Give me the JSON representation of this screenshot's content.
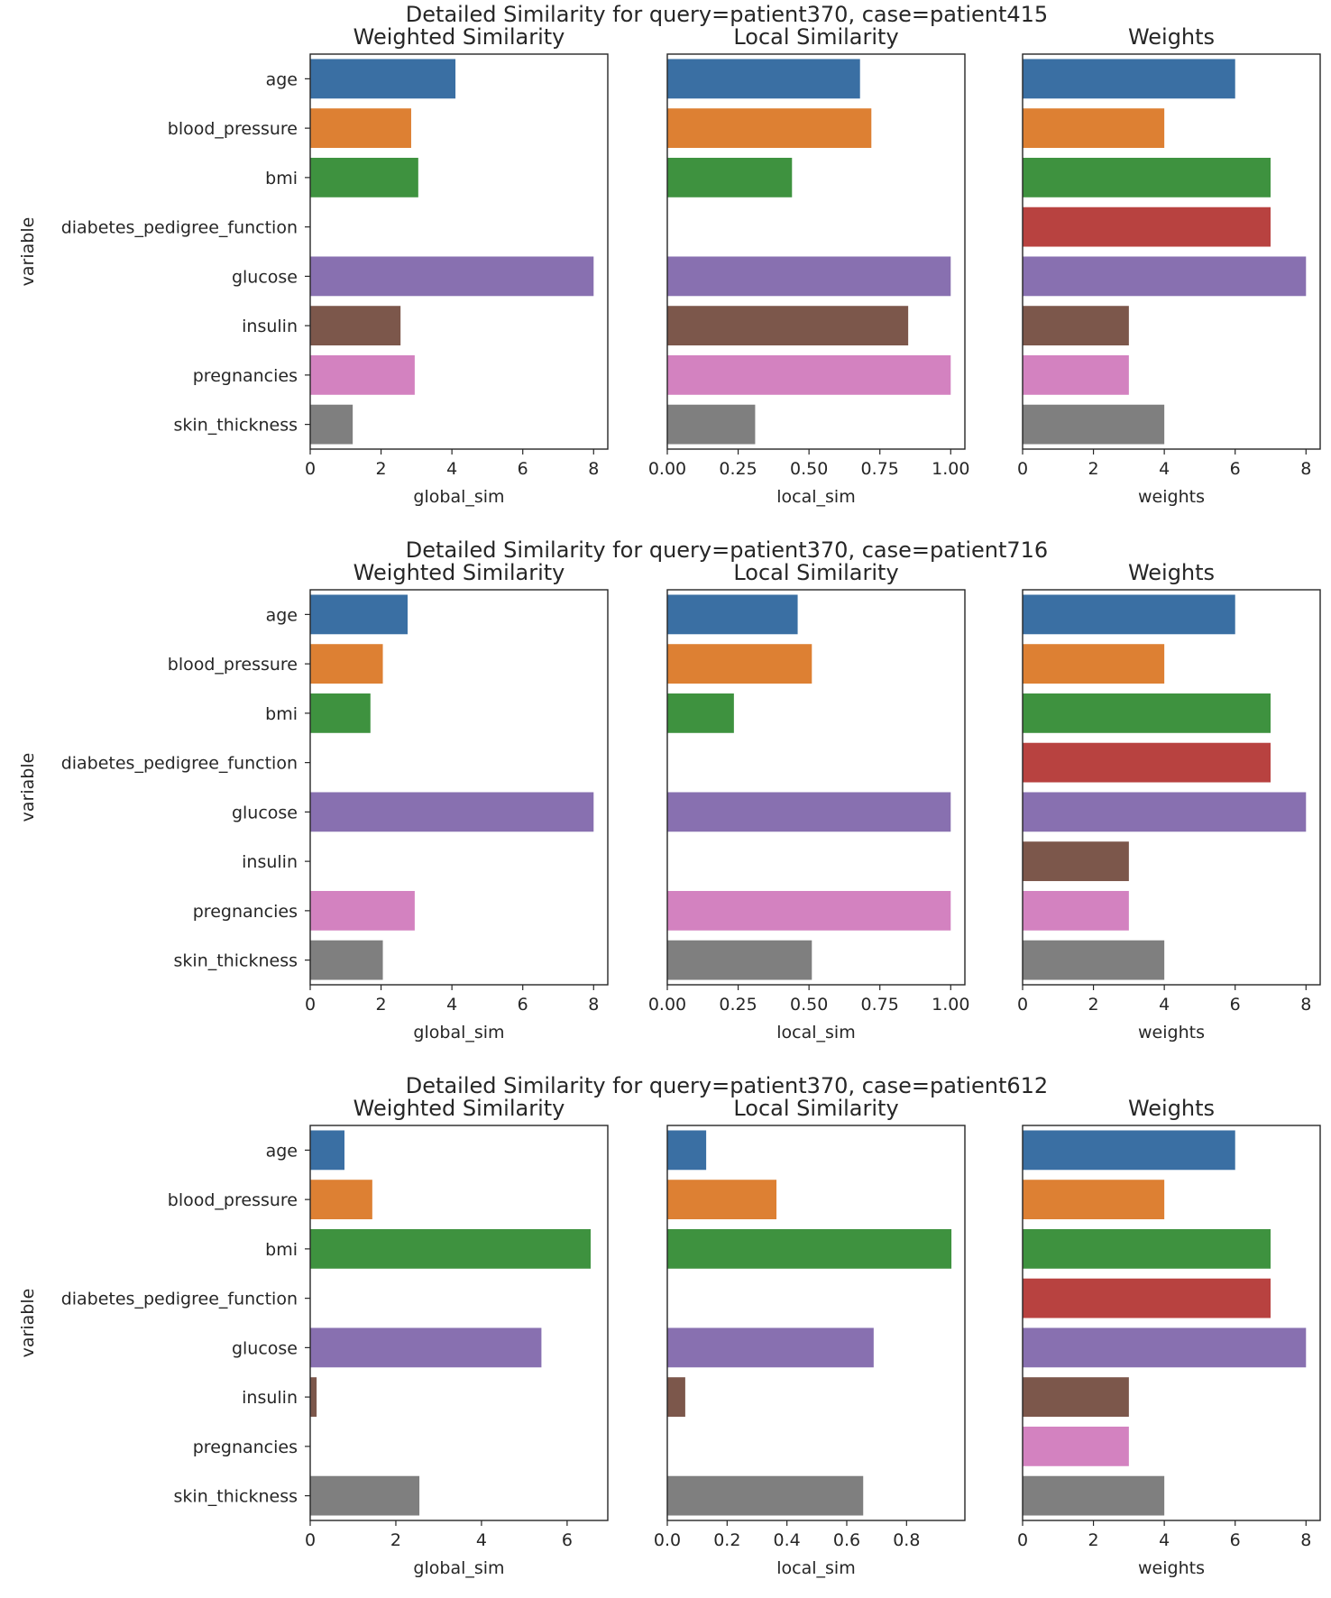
{
  "chart_data": [
    {
      "type": "bar",
      "orientation": "horizontal",
      "title": "Detailed Similarity for query=patient370, case=patient415",
      "ylabel": "variable",
      "categories": [
        "age",
        "blood_pressure",
        "bmi",
        "diabetes_pedigree_function",
        "glucose",
        "insulin",
        "pregnancies",
        "skin_thickness"
      ],
      "colors": [
        "#3a6fa3",
        "#dd8033",
        "#3e923f",
        "#b84240",
        "#8870b0",
        "#7c574b",
        "#d382c0",
        "#7f7f7f"
      ],
      "panels": [
        {
          "title": "Weighted Similarity",
          "xlabel": "global_sim",
          "xlim": [
            0,
            8.4
          ],
          "xticks": [
            "0",
            "2",
            "4",
            "6",
            "8"
          ],
          "xtick_values": [
            0,
            2,
            4,
            6,
            8
          ],
          "values": [
            4.1,
            2.85,
            3.05,
            0,
            8.0,
            2.55,
            2.95,
            1.2
          ]
        },
        {
          "title": "Local Similarity",
          "xlabel": "local_sim",
          "xlim": [
            0,
            1.05
          ],
          "xticks": [
            "0.00",
            "0.25",
            "0.50",
            "0.75",
            "1.00"
          ],
          "xtick_values": [
            0,
            0.25,
            0.5,
            0.75,
            1.0
          ],
          "values": [
            0.68,
            0.72,
            0.44,
            0,
            1.0,
            0.85,
            1.0,
            0.31
          ]
        },
        {
          "title": "Weights",
          "xlabel": "weights",
          "xlim": [
            0,
            8.4
          ],
          "xticks": [
            "0",
            "2",
            "4",
            "6",
            "8"
          ],
          "xtick_values": [
            0,
            2,
            4,
            6,
            8
          ],
          "values": [
            6,
            4,
            7,
            7,
            8,
            3,
            3,
            4
          ]
        }
      ]
    },
    {
      "type": "bar",
      "orientation": "horizontal",
      "title": "Detailed Similarity for query=patient370, case=patient716",
      "ylabel": "variable",
      "categories": [
        "age",
        "blood_pressure",
        "bmi",
        "diabetes_pedigree_function",
        "glucose",
        "insulin",
        "pregnancies",
        "skin_thickness"
      ],
      "colors": [
        "#3a6fa3",
        "#dd8033",
        "#3e923f",
        "#b84240",
        "#8870b0",
        "#7c574b",
        "#d382c0",
        "#7f7f7f"
      ],
      "panels": [
        {
          "title": "Weighted Similarity",
          "xlabel": "global_sim",
          "xlim": [
            0,
            8.4
          ],
          "xticks": [
            "0",
            "2",
            "4",
            "6",
            "8"
          ],
          "xtick_values": [
            0,
            2,
            4,
            6,
            8
          ],
          "values": [
            2.75,
            2.05,
            1.7,
            0,
            8.0,
            0,
            2.95,
            2.05
          ]
        },
        {
          "title": "Local Similarity",
          "xlabel": "local_sim",
          "xlim": [
            0,
            1.05
          ],
          "xticks": [
            "0.00",
            "0.25",
            "0.50",
            "0.75",
            "1.00"
          ],
          "xtick_values": [
            0,
            0.25,
            0.5,
            0.75,
            1.0
          ],
          "values": [
            0.46,
            0.51,
            0.235,
            0,
            1.0,
            0,
            1.0,
            0.51
          ]
        },
        {
          "title": "Weights",
          "xlabel": "weights",
          "xlim": [
            0,
            8.4
          ],
          "xticks": [
            "0",
            "2",
            "4",
            "6",
            "8"
          ],
          "xtick_values": [
            0,
            2,
            4,
            6,
            8
          ],
          "values": [
            6,
            4,
            7,
            7,
            8,
            3,
            3,
            4
          ]
        }
      ]
    },
    {
      "type": "bar",
      "orientation": "horizontal",
      "title": "Detailed Similarity for query=patient370, case=patient612",
      "ylabel": "variable",
      "categories": [
        "age",
        "blood_pressure",
        "bmi",
        "diabetes_pedigree_function",
        "glucose",
        "insulin",
        "pregnancies",
        "skin_thickness"
      ],
      "colors": [
        "#3a6fa3",
        "#dd8033",
        "#3e923f",
        "#b84240",
        "#8870b0",
        "#7c574b",
        "#d382c0",
        "#7f7f7f"
      ],
      "panels": [
        {
          "title": "Weighted Similarity",
          "xlabel": "global_sim",
          "xlim": [
            0,
            6.95
          ],
          "xticks": [
            "0",
            "2",
            "4",
            "6"
          ],
          "xtick_values": [
            0,
            2,
            4,
            6
          ],
          "values": [
            0.8,
            1.45,
            6.55,
            0,
            5.4,
            0.15,
            0,
            2.55
          ]
        },
        {
          "title": "Local Similarity",
          "xlabel": "local_sim",
          "xlim": [
            0,
            0.995
          ],
          "xticks": [
            "0.0",
            "0.2",
            "0.4",
            "0.6",
            "0.8"
          ],
          "xtick_values": [
            0,
            0.2,
            0.4,
            0.6,
            0.8
          ],
          "values": [
            0.13,
            0.365,
            0.95,
            0,
            0.69,
            0.06,
            0,
            0.655
          ]
        },
        {
          "title": "Weights",
          "xlabel": "weights",
          "xlim": [
            0,
            8.4
          ],
          "xticks": [
            "0",
            "2",
            "4",
            "6",
            "8"
          ],
          "xtick_values": [
            0,
            2,
            4,
            6,
            8
          ],
          "values": [
            6,
            4,
            7,
            7,
            8,
            3,
            3,
            4
          ]
        }
      ]
    }
  ]
}
